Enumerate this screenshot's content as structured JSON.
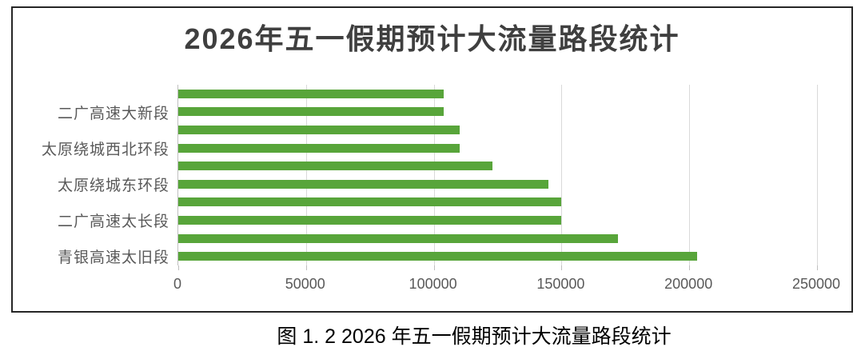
{
  "figure": {
    "caption": "图 1. 2 2026 年五一假期预计大流量路段统计"
  },
  "chart_data": {
    "type": "bar",
    "orientation": "horizontal",
    "title": "2026年五一假期预计大流量路段统计",
    "xlabel": "",
    "ylabel": "",
    "xlim": [
      0,
      250000
    ],
    "x_ticks": [
      0,
      50000,
      100000,
      150000,
      200000,
      250000
    ],
    "grid": true,
    "legend": false,
    "categories_labeled": [
      "二广高速大新段",
      "太原绕城西北环段",
      "太原绕城东环段",
      "二广高速太长段",
      "青银高速太旧段"
    ],
    "bars_top_to_bottom": [
      {
        "label": "",
        "value": 104000
      },
      {
        "label": "二广高速大新段",
        "value": 104000
      },
      {
        "label": "",
        "value": 110000
      },
      {
        "label": "太原绕城西北环段",
        "value": 110000
      },
      {
        "label": "",
        "value": 123000
      },
      {
        "label": "太原绕城东环段",
        "value": 145000
      },
      {
        "label": "",
        "value": 150000
      },
      {
        "label": "二广高速太长段",
        "value": 150000
      },
      {
        "label": "",
        "value": 172000
      },
      {
        "label": "青银高速太旧段",
        "value": 203000
      }
    ],
    "colors": {
      "bar": "#58a53a",
      "grid": "#d9d9d9",
      "axis": "#bfbfbf",
      "tick_text": "#595959",
      "title_text": "#3f3f3f",
      "frame_border": "#262626"
    }
  }
}
